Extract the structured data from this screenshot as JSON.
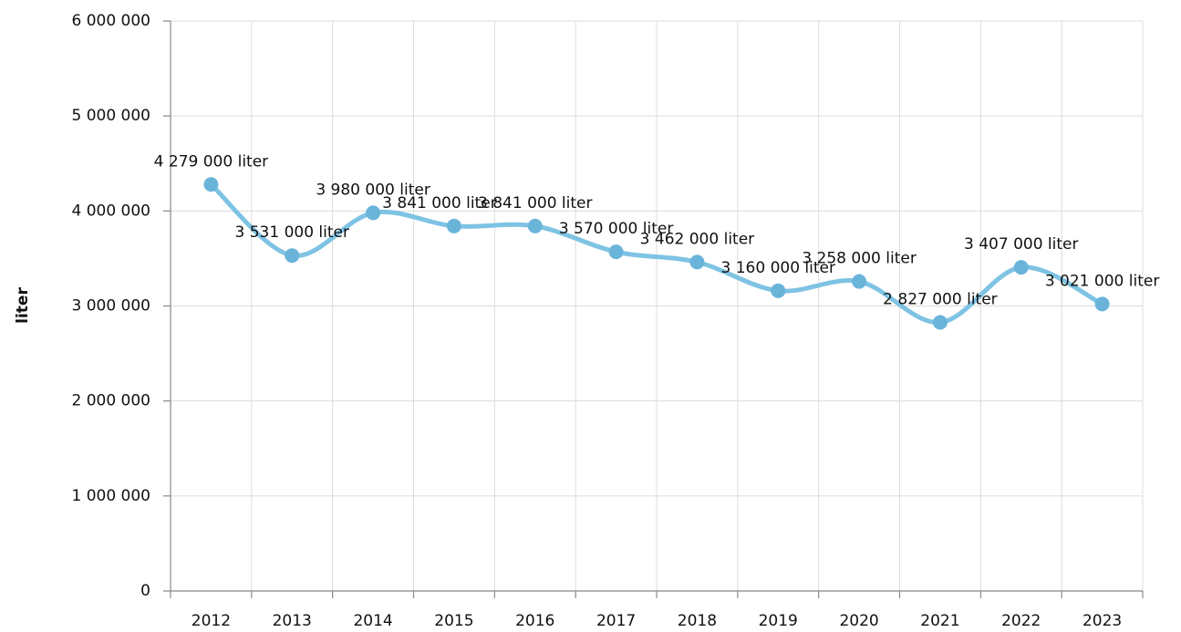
{
  "chart_data": {
    "type": "line",
    "y_label": "liter",
    "categories": [
      "2012",
      "2013",
      "2014",
      "2015",
      "2016",
      "2017",
      "2018",
      "2019",
      "2020",
      "2021",
      "2022",
      "2023"
    ],
    "series": [
      {
        "name": "liter",
        "color": "#7ec3e3",
        "marker_color": "#6ab4da",
        "values": [
          4279000,
          3531000,
          3980000,
          3841000,
          3841000,
          3570000,
          3462000,
          3160000,
          3258000,
          2827000,
          3407000,
          3021000
        ],
        "value_labels": [
          "4 279 000 liter",
          "3 531 000 liter",
          "3 980 000 liter",
          "3 841 000 liter",
          "3 841 000 liter",
          "3 570 000 liter",
          "3 462 000 liter",
          "3 160 000 liter",
          "3 258 000 liter",
          "2 827 000 liter",
          "3 407 000 liter",
          "3 021 000 liter"
        ]
      }
    ],
    "ylim": [
      0,
      6000000
    ],
    "yticks": [
      0,
      {
        "value": 1000000,
        "label": "1 000 000"
      },
      {
        "value": 2000000,
        "label": "2 000 000"
      },
      {
        "value": 3000000,
        "label": "3 000 000"
      },
      {
        "value": 4000000,
        "label": "4 000 000"
      },
      {
        "value": 5000000,
        "label": "5 000 000"
      },
      {
        "value": 6000000,
        "label": "6 000 000"
      }
    ],
    "grid": true,
    "smooth": true
  }
}
